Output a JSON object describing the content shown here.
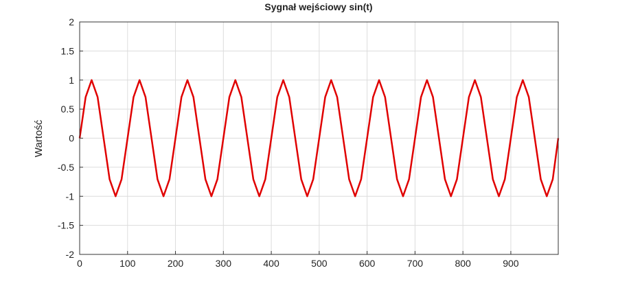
{
  "chart_data": {
    "type": "line",
    "title": "Sygnał wejściowy sin(t)",
    "xlabel": "",
    "ylabel": "Wartość",
    "xlim": [
      0,
      999
    ],
    "ylim": [
      -2,
      2
    ],
    "grid": true,
    "x_ticks": [
      0,
      100,
      200,
      300,
      400,
      500,
      600,
      700,
      800,
      900
    ],
    "y_ticks": [
      -2,
      -1.5,
      -1,
      -0.5,
      0,
      0.5,
      1,
      1.5,
      2
    ],
    "x_tick_labels": [
      "0",
      "100",
      "200",
      "300",
      "400",
      "500",
      "600",
      "700",
      "800",
      "900"
    ],
    "y_tick_labels": [
      "-2",
      "-1.5",
      "-1",
      "-0.5",
      "0",
      "0.5",
      "1",
      "1.5",
      "2"
    ],
    "series": [
      {
        "color": "#e00000",
        "x": [
          0,
          12.5,
          25,
          37.5,
          50,
          62.5,
          75,
          87.5,
          100,
          112.5,
          125,
          137.5,
          150,
          162.5,
          175,
          187.5,
          200,
          212.5,
          225,
          237.5,
          250,
          262.5,
          275,
          287.5,
          300,
          312.5,
          325,
          337.5,
          350,
          362.5,
          375,
          387.5,
          400,
          412.5,
          425,
          437.5,
          450,
          462.5,
          475,
          487.5,
          500,
          512.5,
          525,
          537.5,
          550,
          562.5,
          575,
          587.5,
          600,
          612.5,
          625,
          637.5,
          650,
          662.5,
          675,
          687.5,
          700,
          712.5,
          725,
          737.5,
          750,
          762.5,
          775,
          787.5,
          800,
          812.5,
          825,
          837.5,
          850,
          862.5,
          875,
          887.5,
          900,
          912.5,
          925,
          937.5,
          950,
          962.5,
          975,
          987.5,
          999
        ],
        "y": [
          0,
          0.707,
          1,
          0.707,
          0,
          -0.707,
          -1,
          -0.707,
          0,
          0.707,
          1,
          0.707,
          0,
          -0.707,
          -1,
          -0.707,
          0,
          0.707,
          1,
          0.707,
          0,
          -0.707,
          -1,
          -0.707,
          0,
          0.707,
          1,
          0.707,
          0,
          -0.707,
          -1,
          -0.707,
          0,
          0.707,
          1,
          0.707,
          0,
          -0.707,
          -1,
          -0.707,
          0,
          0.707,
          1,
          0.707,
          0,
          -0.707,
          -1,
          -0.707,
          0,
          0.707,
          1,
          0.707,
          0,
          -0.707,
          -1,
          -0.707,
          0,
          0.707,
          1,
          0.707,
          0,
          -0.707,
          -1,
          -0.707,
          0,
          0.707,
          1,
          0.707,
          0,
          -0.707,
          -1,
          -0.707,
          0,
          0.707,
          1,
          0.707,
          0,
          -0.707,
          -1,
          -0.707,
          0
        ]
      }
    ]
  }
}
